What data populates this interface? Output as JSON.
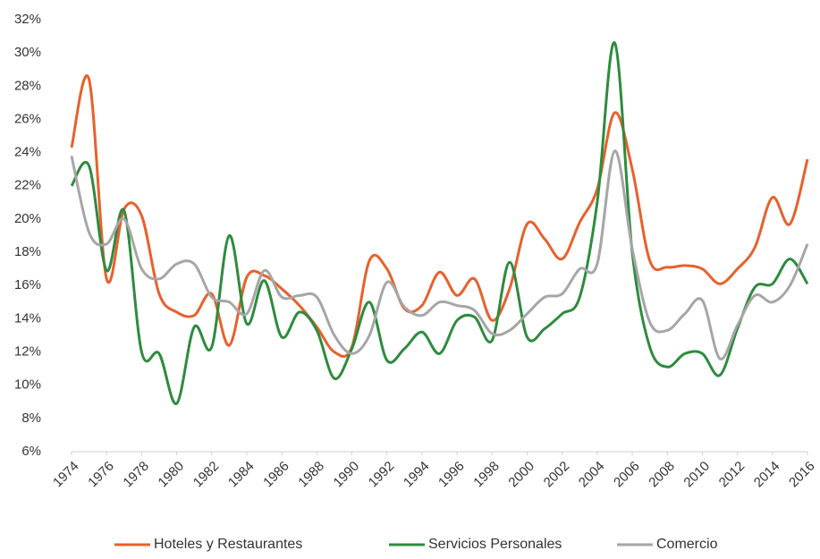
{
  "chart_data": {
    "type": "line",
    "x": [
      1974,
      1975,
      1976,
      1977,
      1978,
      1979,
      1980,
      1981,
      1982,
      1983,
      1984,
      1985,
      1986,
      1987,
      1988,
      1989,
      1990,
      1991,
      1992,
      1993,
      1994,
      1995,
      1996,
      1997,
      1998,
      1999,
      2000,
      2001,
      2002,
      2003,
      2004,
      2005,
      2006,
      2007,
      2008,
      2009,
      2010,
      2011,
      2012,
      2013,
      2014,
      2015,
      2016
    ],
    "xlim": [
      1974,
      2016
    ],
    "xticks": [
      1974,
      1976,
      1978,
      1980,
      1982,
      1984,
      1986,
      1988,
      1990,
      1992,
      1994,
      1996,
      1998,
      2000,
      2002,
      2004,
      2006,
      2008,
      2010,
      2012,
      2014,
      2016
    ],
    "ylim": [
      6,
      32
    ],
    "yticks": [
      {
        "value": 6,
        "label": "6%"
      },
      {
        "value": 8,
        "label": "8%"
      },
      {
        "value": 10,
        "label": "10%"
      },
      {
        "value": 12,
        "label": "12%"
      },
      {
        "value": 14,
        "label": "14%"
      },
      {
        "value": 16,
        "label": "16%"
      },
      {
        "value": 18,
        "label": "18%"
      },
      {
        "value": 20,
        "label": "20%"
      },
      {
        "value": 22,
        "label": "22%"
      },
      {
        "value": 24,
        "label": "24%"
      },
      {
        "value": 26,
        "label": "26%"
      },
      {
        "value": 28,
        "label": "28%"
      },
      {
        "value": 30,
        "label": "30%"
      },
      {
        "value": 32,
        "label": "32%"
      }
    ],
    "grid": false,
    "legend": "bottom",
    "series": [
      {
        "name": "Hoteles y Restaurantes",
        "color": "#e8602c",
        "values": [
          24.3,
          28.4,
          16.4,
          20.6,
          20.2,
          15.5,
          14.4,
          14.2,
          15.5,
          12.4,
          16.5,
          16.6,
          15.8,
          14.8,
          13.5,
          12.0,
          12.3,
          17.5,
          17.0,
          14.6,
          14.8,
          16.8,
          15.4,
          16.4,
          13.9,
          15.8,
          19.7,
          18.8,
          17.6,
          19.8,
          21.8,
          26.4,
          23.0,
          17.5,
          17.1,
          17.2,
          17.0,
          16.1,
          17.0,
          18.3,
          21.3,
          19.7,
          23.6
        ]
      },
      {
        "name": "Servicios Personales",
        "color": "#2e8b3e",
        "values": [
          22.0,
          23.2,
          16.9,
          20.5,
          12.0,
          11.9,
          8.9,
          13.5,
          12.3,
          19.0,
          13.7,
          16.3,
          12.9,
          14.4,
          13.3,
          10.4,
          12.2,
          15.0,
          11.5,
          12.2,
          13.2,
          11.9,
          13.9,
          14.1,
          12.7,
          17.4,
          12.9,
          13.4,
          14.3,
          15.3,
          21.0,
          30.6,
          18.0,
          12.3,
          11.1,
          11.9,
          11.9,
          10.6,
          13.4,
          15.9,
          16.1,
          17.6,
          16.1
        ]
      },
      {
        "name": "Comercio",
        "color": "#a6a6a6",
        "values": [
          23.8,
          19.2,
          18.5,
          20.0,
          17.0,
          16.4,
          17.3,
          17.3,
          15.3,
          15.0,
          14.3,
          16.9,
          15.3,
          15.4,
          15.3,
          13.0,
          11.9,
          13.0,
          16.2,
          14.7,
          14.2,
          15.0,
          14.8,
          14.5,
          13.1,
          13.3,
          14.3,
          15.3,
          15.5,
          17.0,
          17.3,
          24.1,
          18.2,
          13.8,
          13.3,
          14.3,
          15.1,
          11.6,
          13.6,
          15.4,
          15.0,
          16.0,
          18.5
        ]
      }
    ]
  }
}
